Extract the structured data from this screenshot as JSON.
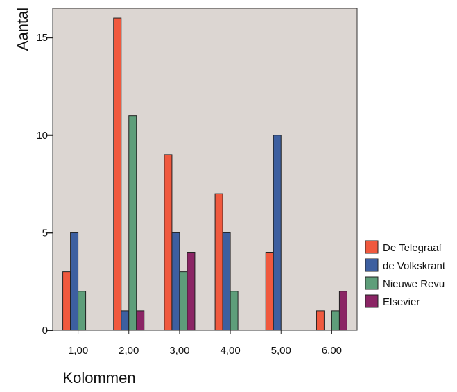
{
  "chart_data": {
    "type": "bar",
    "xlabel": "Kolommen",
    "ylabel": "Aantal",
    "categories": [
      "1,00",
      "2,00",
      "3,00",
      "4,00",
      "5,00",
      "6,00"
    ],
    "ylim": [
      0,
      16.5
    ],
    "yticks": [
      0,
      5,
      10,
      15
    ],
    "ytick_labels": [
      "0",
      "5",
      "10",
      "15"
    ],
    "legend_position": "right",
    "plot_background": "#dcd6d2",
    "series": [
      {
        "name": "De Telegraaf",
        "color": "#f0593e",
        "values": [
          3,
          16,
          9,
          7,
          4,
          1
        ]
      },
      {
        "name": "de Volkskrant",
        "color": "#3d5fa0",
        "values": [
          5,
          1,
          5,
          5,
          10,
          0
        ]
      },
      {
        "name": "Nieuwe Revu",
        "color": "#5e9e7a",
        "values": [
          2,
          11,
          3,
          2,
          0,
          1
        ]
      },
      {
        "name": "Elsevier",
        "color": "#8b2565",
        "values": [
          0,
          1,
          4,
          0,
          0,
          2
        ]
      }
    ]
  }
}
